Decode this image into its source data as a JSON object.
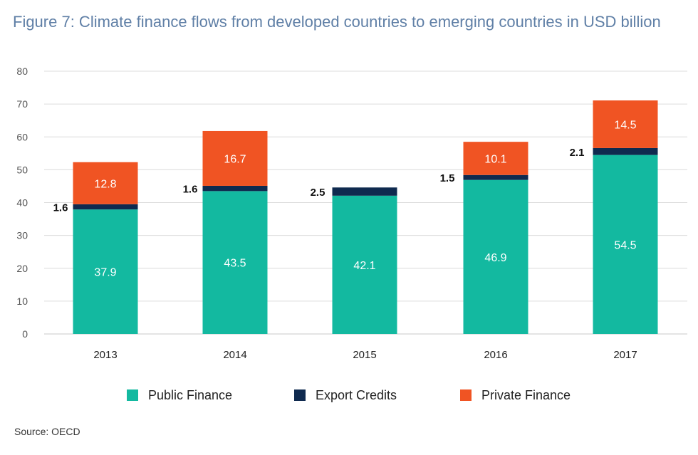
{
  "header": {
    "title": "Figure 7: Climate finance flows from developed countries to emerging countries in USD billion"
  },
  "footer": {
    "source": "Source: OECD"
  },
  "colors": {
    "public": "#13b9a0",
    "export": "#0f2a4f",
    "private": "#f05423",
    "grid": "#dcdcdc",
    "axis_text": "#555555"
  },
  "chart_data": {
    "type": "bar",
    "stacked": true,
    "categories": [
      "2013",
      "2014",
      "2015",
      "2016",
      "2017"
    ],
    "series": [
      {
        "name": "Public Finance",
        "values": [
          37.9,
          43.5,
          42.1,
          46.9,
          54.5
        ]
      },
      {
        "name": "Export Credits",
        "values": [
          1.6,
          1.6,
          2.5,
          1.5,
          2.1
        ]
      },
      {
        "name": "Private Finance",
        "values": [
          12.8,
          16.7,
          0,
          10.1,
          14.5
        ]
      }
    ],
    "ylim": [
      0,
      80
    ],
    "yticks": [
      0,
      10,
      20,
      30,
      40,
      50,
      60,
      70,
      80
    ],
    "grid": true,
    "legend_position": "bottom"
  }
}
